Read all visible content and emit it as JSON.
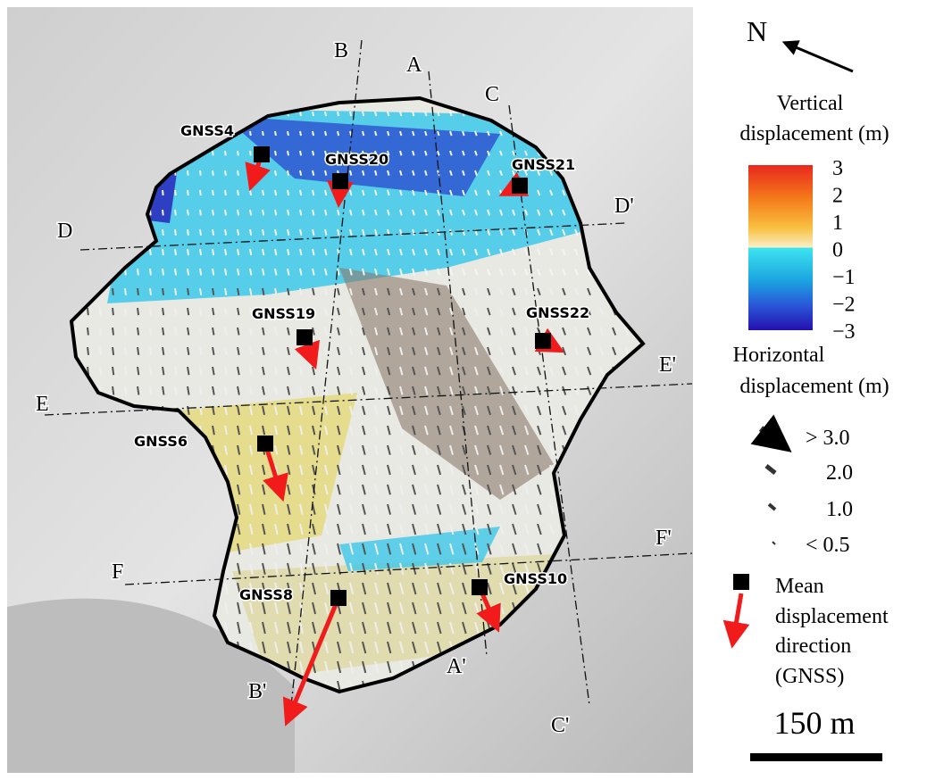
{
  "north": "N",
  "profiles": {
    "A": "A",
    "A_end": "A'",
    "B": "B",
    "B_end": "B'",
    "C": "C",
    "C_end": "C'",
    "D": "D",
    "D_end": "D'",
    "E": "E",
    "E_end": "E'",
    "F": "F",
    "F_end": "F'"
  },
  "stations": [
    "GNSS4",
    "GNSS20",
    "GNSS21",
    "GNSS19",
    "GNSS22",
    "GNSS6",
    "GNSS8",
    "GNSS10"
  ],
  "legend": {
    "vertical_title": [
      "Vertical",
      "displacement (m)"
    ],
    "vertical_ticks": [
      "3",
      "2",
      "1",
      "0",
      "−1",
      "−2",
      "−3"
    ],
    "horizontal_title": [
      "Horizontal",
      "displacement (m)"
    ],
    "horizontal_classes": [
      "> 3.0",
      "2.0",
      "1.0",
      "< 0.5"
    ],
    "gnss_title": [
      "Mean",
      "displacement",
      "direction",
      "(GNSS)"
    ]
  },
  "scale": "150 m"
}
